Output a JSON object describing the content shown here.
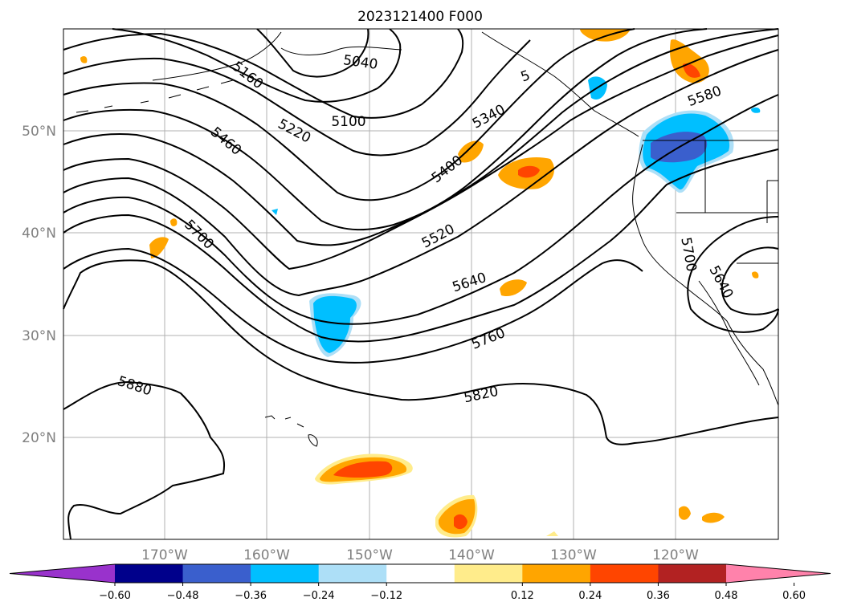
{
  "title": "2023121400 F000",
  "lat_labels": [
    "50°N",
    "40°N",
    "30°N",
    "20°N"
  ],
  "lon_labels": [
    "170°W",
    "160°W",
    "150°W",
    "140°W",
    "130°W",
    "120°W"
  ],
  "contour_labels": [
    "5040",
    "5160",
    "5100",
    "5220",
    "5340",
    "5460",
    "5400",
    "5580",
    "5520",
    "5700",
    "5640",
    "5700",
    "5640",
    "5760",
    "5820",
    "5880",
    "5"
  ],
  "colorbar": {
    "ticks": [
      "−0.60",
      "−0.48",
      "−0.36",
      "−0.24",
      "−0.12",
      "0.12",
      "0.24",
      "0.36",
      "0.48",
      "0.60"
    ],
    "colors": [
      "#9932CC",
      "#00008B",
      "#3A5FCD",
      "#00BFFF",
      "#ADDFF7",
      "#FFFFFF",
      "#FFEC8B",
      "#FFA500",
      "#FF4500",
      "#B22222",
      "#FF82AB"
    ]
  }
}
